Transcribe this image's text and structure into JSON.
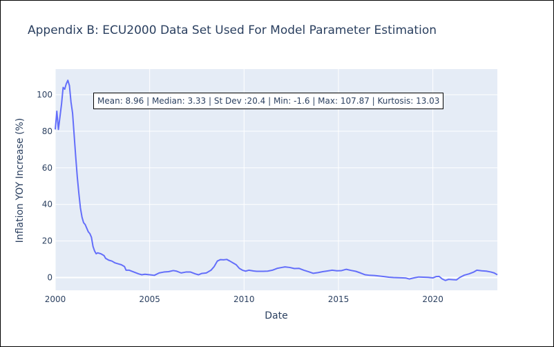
{
  "chart_data": {
    "type": "line",
    "title": "Appendix B: ECU2000 Data Set Used For Model Parameter Estimation",
    "xlabel": "Date",
    "ylabel": "Inflation YOY Increase (%)",
    "annotation": "Mean: 8.96 | Median: 3.33 | St Dev :20.4 | Min: -1.6 | Max: 107.87 | Kurtosis: 13.03",
    "xlim": [
      "2000-01",
      "2023-06"
    ],
    "ylim": [
      -7,
      114
    ],
    "x_ticks": [
      "2000",
      "2005",
      "2010",
      "2015",
      "2020"
    ],
    "y_ticks": [
      0,
      20,
      40,
      60,
      80,
      100
    ],
    "grid": true,
    "line_color": "#636efa",
    "series": [
      {
        "points": [
          [
            "2000-01",
            81
          ],
          [
            "2000-02",
            91
          ],
          [
            "2000-03",
            81
          ],
          [
            "2000-04",
            88
          ],
          [
            "2000-05",
            95
          ],
          [
            "2000-06",
            104
          ],
          [
            "2000-07",
            103
          ],
          [
            "2000-08",
            106
          ],
          [
            "2000-09",
            107.87
          ],
          [
            "2000-10",
            105
          ],
          [
            "2000-11",
            96
          ],
          [
            "2000-12",
            90
          ],
          [
            "2001-01",
            78
          ],
          [
            "2001-02",
            66
          ],
          [
            "2001-03",
            55
          ],
          [
            "2001-04",
            46
          ],
          [
            "2001-05",
            38
          ],
          [
            "2001-06",
            33
          ],
          [
            "2001-07",
            30
          ],
          [
            "2001-08",
            29
          ],
          [
            "2001-09",
            27
          ],
          [
            "2001-10",
            25
          ],
          [
            "2001-11",
            24
          ],
          [
            "2001-12",
            22
          ],
          [
            "2002-01",
            17
          ],
          [
            "2002-02",
            14.5
          ],
          [
            "2002-03",
            13
          ],
          [
            "2002-04",
            13.5
          ],
          [
            "2002-06",
            13
          ],
          [
            "2002-08",
            12
          ],
          [
            "2002-09",
            10.5
          ],
          [
            "2002-11",
            9.5
          ],
          [
            "2003-01",
            9
          ],
          [
            "2003-03",
            8
          ],
          [
            "2003-05",
            7.5
          ],
          [
            "2003-07",
            7
          ],
          [
            "2003-09",
            6
          ],
          [
            "2003-10",
            4
          ],
          [
            "2003-12",
            4
          ],
          [
            "2004-03",
            3
          ],
          [
            "2004-06",
            2
          ],
          [
            "2004-08",
            1.5
          ],
          [
            "2004-10",
            1.8
          ],
          [
            "2005-01",
            1.5
          ],
          [
            "2005-04",
            1.2
          ],
          [
            "2005-07",
            2.5
          ],
          [
            "2005-10",
            3
          ],
          [
            "2006-01",
            3.2
          ],
          [
            "2006-04",
            3.8
          ],
          [
            "2006-06",
            3.5
          ],
          [
            "2006-09",
            2.5
          ],
          [
            "2006-12",
            3
          ],
          [
            "2007-03",
            3
          ],
          [
            "2007-06",
            2
          ],
          [
            "2007-08",
            1.5
          ],
          [
            "2007-10",
            2.2
          ],
          [
            "2008-01",
            2.5
          ],
          [
            "2008-04",
            4
          ],
          [
            "2008-06",
            6
          ],
          [
            "2008-08",
            9
          ],
          [
            "2008-10",
            9.8
          ],
          [
            "2008-12",
            9.7
          ],
          [
            "2009-02",
            9.9
          ],
          [
            "2009-04",
            9
          ],
          [
            "2009-06",
            8
          ],
          [
            "2009-08",
            7
          ],
          [
            "2009-10",
            5
          ],
          [
            "2009-12",
            4
          ],
          [
            "2010-02",
            3.5
          ],
          [
            "2010-04",
            4
          ],
          [
            "2010-07",
            3.6
          ],
          [
            "2010-09",
            3.4
          ],
          [
            "2011-01",
            3.4
          ],
          [
            "2011-04",
            3.5
          ],
          [
            "2011-07",
            4
          ],
          [
            "2011-10",
            5
          ],
          [
            "2012-01",
            5.5
          ],
          [
            "2012-03",
            5.8
          ],
          [
            "2012-06",
            5.5
          ],
          [
            "2012-09",
            4.9
          ],
          [
            "2012-12",
            5
          ],
          [
            "2013-03",
            4
          ],
          [
            "2013-06",
            3.2
          ],
          [
            "2013-09",
            2.3
          ],
          [
            "2013-12",
            2.7
          ],
          [
            "2014-03",
            3.2
          ],
          [
            "2014-06",
            3.6
          ],
          [
            "2014-09",
            4
          ],
          [
            "2014-12",
            3.7
          ],
          [
            "2015-03",
            3.8
          ],
          [
            "2015-06",
            4.5
          ],
          [
            "2015-09",
            3.9
          ],
          [
            "2015-12",
            3.4
          ],
          [
            "2016-03",
            2.5
          ],
          [
            "2016-06",
            1.5
          ],
          [
            "2016-09",
            1.2
          ],
          [
            "2016-12",
            1.1
          ],
          [
            "2017-03",
            0.8
          ],
          [
            "2017-06",
            0.5
          ],
          [
            "2017-09",
            0.2
          ],
          [
            "2017-12",
            0
          ],
          [
            "2018-03",
            -0.1
          ],
          [
            "2018-06",
            -0.2
          ],
          [
            "2018-08",
            -0.3
          ],
          [
            "2018-10",
            -0.8
          ],
          [
            "2019-01",
            -0.2
          ],
          [
            "2019-04",
            0.3
          ],
          [
            "2019-07",
            0.2
          ],
          [
            "2019-10",
            0.1
          ],
          [
            "2020-01",
            -0.2
          ],
          [
            "2020-03",
            0.5
          ],
          [
            "2020-05",
            0.6
          ],
          [
            "2020-07",
            -0.8
          ],
          [
            "2020-09",
            -1.6
          ],
          [
            "2020-11",
            -1
          ],
          [
            "2021-02",
            -1.2
          ],
          [
            "2021-04",
            -1.3
          ],
          [
            "2021-06",
            0
          ],
          [
            "2021-09",
            1.3
          ],
          [
            "2021-12",
            2
          ],
          [
            "2022-03",
            3
          ],
          [
            "2022-05",
            4
          ],
          [
            "2022-08",
            3.7
          ],
          [
            "2022-11",
            3.5
          ],
          [
            "2023-02",
            3
          ],
          [
            "2023-04",
            2.5
          ],
          [
            "2023-06",
            1.5
          ]
        ]
      }
    ]
  }
}
